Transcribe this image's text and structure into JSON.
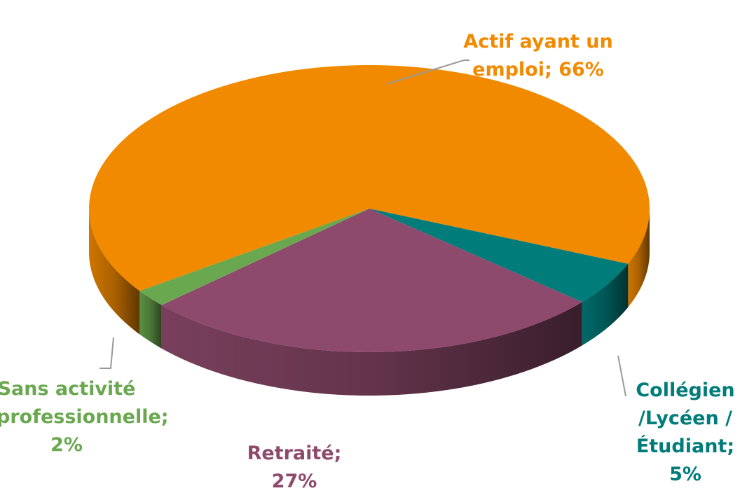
{
  "chart_data": {
    "type": "pie",
    "categories": [
      "Actif ayant un emploi",
      "Collégien /Lycéen / Étudiant",
      "Retraité",
      "Sans activité professionnelle"
    ],
    "values": [
      66,
      5,
      27,
      2
    ],
    "value_labels": [
      "66%",
      "5%",
      "27%",
      "2%"
    ],
    "label_separator": ";",
    "colors": [
      "#f28a00",
      "#007c7a",
      "#8e4a6c",
      "#6aa84f"
    ]
  }
}
